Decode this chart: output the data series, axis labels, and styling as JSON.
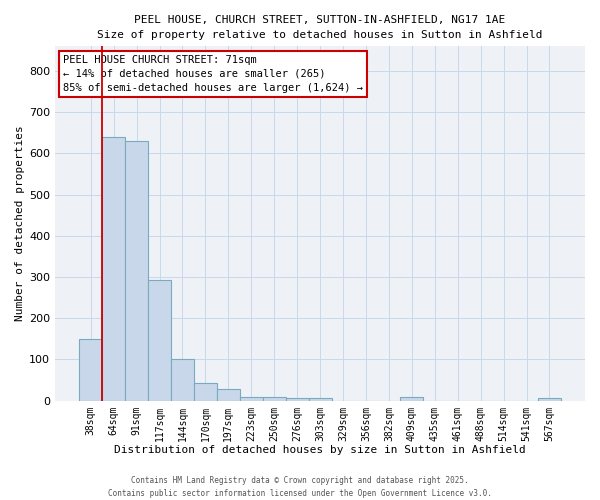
{
  "title1": "PEEL HOUSE, CHURCH STREET, SUTTON-IN-ASHFIELD, NG17 1AE",
  "title2": "Size of property relative to detached houses in Sutton in Ashfield",
  "xlabel": "Distribution of detached houses by size in Sutton in Ashfield",
  "ylabel": "Number of detached properties",
  "bar_labels": [
    "38sqm",
    "64sqm",
    "91sqm",
    "117sqm",
    "144sqm",
    "170sqm",
    "197sqm",
    "223sqm",
    "250sqm",
    "276sqm",
    "303sqm",
    "329sqm",
    "356sqm",
    "382sqm",
    "409sqm",
    "435sqm",
    "461sqm",
    "488sqm",
    "514sqm",
    "541sqm",
    "567sqm"
  ],
  "bar_values": [
    150,
    640,
    630,
    292,
    102,
    43,
    29,
    10,
    10,
    7,
    7,
    0,
    0,
    0,
    8,
    0,
    0,
    0,
    0,
    0,
    7
  ],
  "bar_color": "#c8d8ea",
  "bar_edge_color": "#7aaabf",
  "grid_color": "#c8d8ea",
  "background_color": "#eef2f7",
  "ylim": [
    0,
    860
  ],
  "yticks": [
    0,
    100,
    200,
    300,
    400,
    500,
    600,
    700,
    800
  ],
  "property_label": "PEEL HOUSE CHURCH STREET: 71sqm",
  "annotation_line1": "← 14% of detached houses are smaller (265)",
  "annotation_line2": "85% of semi-detached houses are larger (1,624) →",
  "vline_color": "#cc0000",
  "annotation_box_color": "#cc0000",
  "vline_x_index": 0.5,
  "footer1": "Contains HM Land Registry data © Crown copyright and database right 2025.",
  "footer2": "Contains public sector information licensed under the Open Government Licence v3.0."
}
